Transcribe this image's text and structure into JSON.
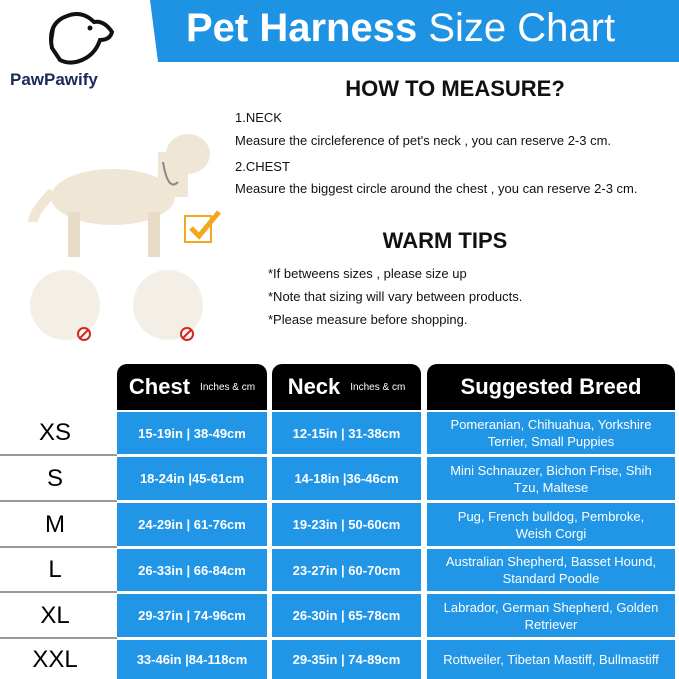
{
  "brand": "PawPawify",
  "title_bold": "Pet Harness",
  "title_light": "Size Chart",
  "how_to": {
    "heading": "HOW TO MEASURE?",
    "neck_label": "1.NECK",
    "neck_text": "Measure the circleference of pet's neck , you can reserve 2-3 cm.",
    "chest_label": "2.CHEST",
    "chest_text": "Measure the biggest circle around the chest , you can reserve 2-3 cm."
  },
  "tips": {
    "heading": "WARM TIPS",
    "items": [
      "*If betweens sizes , please size up",
      "*Note that sizing will vary between products.",
      "*Please measure before shopping."
    ]
  },
  "table": {
    "headers": {
      "chest": "Chest",
      "chest_unit": "Inches & cm",
      "neck": "Neck",
      "neck_unit": "Inches & cm",
      "breed": "Suggested Breed"
    },
    "rows": [
      {
        "size": "XS",
        "chest": "15-19in | 38-49cm",
        "neck": "12-15in | 31-38cm",
        "breed": "Pomeranian, Chihuahua, Yorkshire Terrier, Small Puppies"
      },
      {
        "size": "S",
        "chest": "18-24in |45-61cm",
        "neck": "14-18in |36-46cm",
        "breed": "Mini Schnauzer, Bichon Frise, Shih Tzu, Maltese"
      },
      {
        "size": "M",
        "chest": "24-29in | 61-76cm",
        "neck": "19-23in | 50-60cm",
        "breed": "Pug, French bulldog, Pembroke, Weish Corgi"
      },
      {
        "size": "L",
        "chest": "26-33in | 66-84cm",
        "neck": "23-27in | 60-70cm",
        "breed": "Australian Shepherd, Basset Hound, Standard Poodle"
      },
      {
        "size": "XL",
        "chest": "29-37in | 74-96cm",
        "neck": "26-30in | 65-78cm",
        "breed": "Labrador, German Shepherd, Golden Retriever"
      },
      {
        "size": "XXL",
        "chest": "33-46in |84-118cm",
        "neck": "29-35in | 74-89cm",
        "breed": "Rottweiler, Tibetan Mastiff, Bullmastiff"
      }
    ]
  },
  "colors": {
    "blue": "#2196e6",
    "black": "#000000",
    "check": "#f2a81d",
    "no": "#d9261c"
  }
}
